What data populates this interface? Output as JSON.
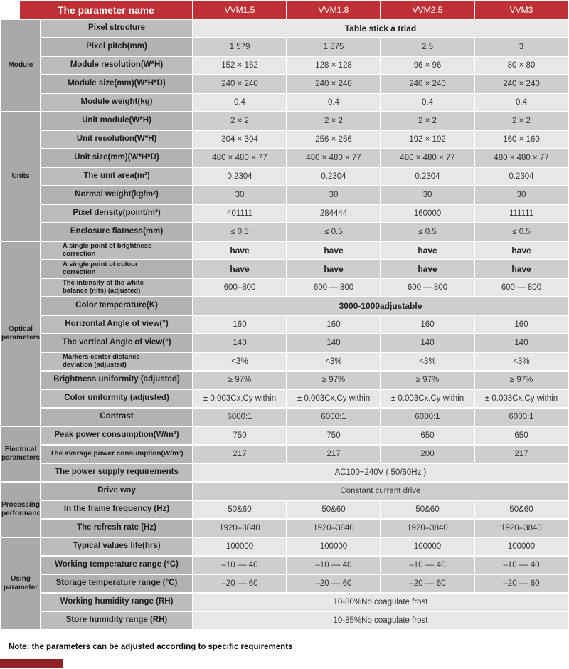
{
  "colors": {
    "header_red": "#bf3036",
    "accent_bar": "#8e2227",
    "row_light": "#e7e7e7",
    "row_dark": "#cecece",
    "label_light": "#bcbcbc",
    "label_dark": "#b2b2b2",
    "group_gray": "#a9a9a9"
  },
  "header": {
    "param_col_label": "The parameter name",
    "columns": [
      "VVM1.5",
      "VVM1.8",
      "VVM2.5",
      "VVM3"
    ]
  },
  "groups": [
    {
      "label": "Module",
      "rows": [
        {
          "label": "Pixel structure",
          "span": "Table stick a triad",
          "bold": true,
          "shade": "light"
        },
        {
          "label": "Pixel pitch(mm)",
          "values": [
            "1.579",
            "1.875",
            "2.5",
            "3"
          ],
          "shade": "dark"
        },
        {
          "label": "Module resolution(W*H)",
          "values": [
            "152 × 152",
            "128 × 128",
            "96 × 96",
            "80 × 80"
          ],
          "shade": "light"
        },
        {
          "label": "Module size(mm)(W*H*D)",
          "values": [
            "240 × 240",
            "240 × 240",
            "240 × 240",
            "240 × 240"
          ],
          "shade": "dark"
        },
        {
          "label": "Module weight(kg)",
          "values": [
            "0.4",
            "0.4",
            "0.4",
            "0.4"
          ],
          "shade": "light"
        }
      ]
    },
    {
      "label": "Units",
      "rows": [
        {
          "label": "Unit module(W*H)",
          "values": [
            "2 × 2",
            "2 × 2",
            "2 × 2",
            "2 × 2"
          ],
          "shade": "dark"
        },
        {
          "label": "Unit resolution(W*H)",
          "values": [
            "304 × 304",
            "256 × 256",
            "192 × 192",
            "160 × 160"
          ],
          "shade": "light"
        },
        {
          "label": "Unit size(mm)(W*H*D)",
          "values": [
            "480 × 480 × 77",
            "480 × 480 × 77",
            "480 × 480 × 77",
            "480 × 480 × 77"
          ],
          "shade": "dark"
        },
        {
          "label": "The unit area(m²)",
          "values": [
            "0.2304",
            "0.2304",
            "0.2304",
            "0.2304"
          ],
          "shade": "light"
        },
        {
          "label": "Normal weight(kg/m²)",
          "values": [
            "30",
            "30",
            "30",
            "30"
          ],
          "shade": "dark"
        },
        {
          "label": "Pixel density(point/m²)",
          "values": [
            "401111",
            "284444",
            "160000",
            "111111"
          ],
          "shade": "light"
        },
        {
          "label": "Enclosure flatness(mm)",
          "values": [
            "≤ 0.5",
            "≤ 0.5",
            "≤ 0.5",
            "≤ 0.5"
          ],
          "shade": "dark"
        }
      ]
    },
    {
      "label": "Optical parameters",
      "rows": [
        {
          "label": "A single point of brightness correction",
          "small": true,
          "values": [
            "have",
            "have",
            "have",
            "have"
          ],
          "bold": true,
          "shade": "light"
        },
        {
          "label": "A single point of colour correction",
          "small": true,
          "values": [
            "have",
            "have",
            "have",
            "have"
          ],
          "bold": true,
          "shade": "dark"
        },
        {
          "label": "The intensity of the white balance (nits) (adjusted)",
          "small": true,
          "values": [
            "600–800",
            "600 — 800",
            "600 — 800",
            "600 — 800"
          ],
          "shade": "light"
        },
        {
          "label": "Color temperature(K)",
          "span": "3000-1000adjustable",
          "bold": true,
          "shade": "dark"
        },
        {
          "label": "Horizontal Angle of view(°)",
          "values": [
            "160",
            "160",
            "160",
            "160"
          ],
          "shade": "light"
        },
        {
          "label": "The vertical Angle of view(°)",
          "values": [
            "140",
            "140",
            "140",
            "140"
          ],
          "shade": "dark"
        },
        {
          "label": "Markers center distance deviation (adjusted)",
          "small": true,
          "values": [
            "<3%",
            "<3%",
            "<3%",
            "<3%"
          ],
          "shade": "light"
        },
        {
          "label": "Brightness uniformity (adjusted)",
          "values": [
            "≥ 97%",
            "≥ 97%",
            "≥ 97%",
            "≥ 97%"
          ],
          "shade": "dark"
        },
        {
          "label": "Color uniformity (adjusted)",
          "values": [
            "± 0.003Cx,Cy within",
            "± 0.003Cx,Cy within",
            "± 0.003Cx,Cy within",
            "± 0.003Cx,Cy within"
          ],
          "shade": "light"
        },
        {
          "label": "Contrast",
          "values": [
            "6000:1",
            "6000:1",
            "6000:1",
            "6000:1"
          ],
          "shade": "dark"
        }
      ]
    },
    {
      "label": "Electrical parameters",
      "rows": [
        {
          "label": "Peak power consumption(W/m²)",
          "values": [
            "750",
            "750",
            "650",
            "650"
          ],
          "shade": "light"
        },
        {
          "label": "The average power consumption(W/m²)",
          "small": true,
          "center": true,
          "values": [
            "217",
            "217",
            "200",
            "217"
          ],
          "shade": "dark"
        },
        {
          "label": "The power supply requirements",
          "span": "AC100~240V ( 50/60Hz )",
          "shade": "light"
        }
      ]
    },
    {
      "label": "Processing performance",
      "rows": [
        {
          "label": "Drive way",
          "span": "Constant current drive",
          "shade": "dark"
        },
        {
          "label": "In the frame frequency (Hz)",
          "values": [
            "50&60",
            "50&60",
            "50&60",
            "50&60"
          ],
          "shade": "light"
        },
        {
          "label": "The refresh rate (Hz)",
          "values": [
            "1920–3840",
            "1920–3840",
            "1920–3840",
            "1920–3840"
          ],
          "shade": "dark"
        }
      ]
    },
    {
      "label": "Using parameter",
      "rows": [
        {
          "label": "Typical values life(hrs)",
          "values": [
            "100000",
            "100000",
            "100000",
            "100000"
          ],
          "shade": "light"
        },
        {
          "label": "Working temperature range (°C)",
          "values": [
            "–10 –– 40",
            "–10 –– 40",
            "–10 –– 40",
            "–10 –– 40"
          ],
          "shade": "dark"
        },
        {
          "label": "Storage temperature range (°C)",
          "values": [
            "–20 –– 60",
            "–20 –– 60",
            "–20 –– 60",
            "–20 –– 60"
          ],
          "shade": "dark"
        },
        {
          "label": "Working humidity range (RH)",
          "span": "10-80%No coagulate frost",
          "shade": "light"
        },
        {
          "label": "Store humidity range (RH)",
          "span": "10-85%No coagulate frost",
          "shade": "light"
        }
      ]
    }
  ],
  "note": "Note: the parameters can be adjusted according to specific requirements"
}
